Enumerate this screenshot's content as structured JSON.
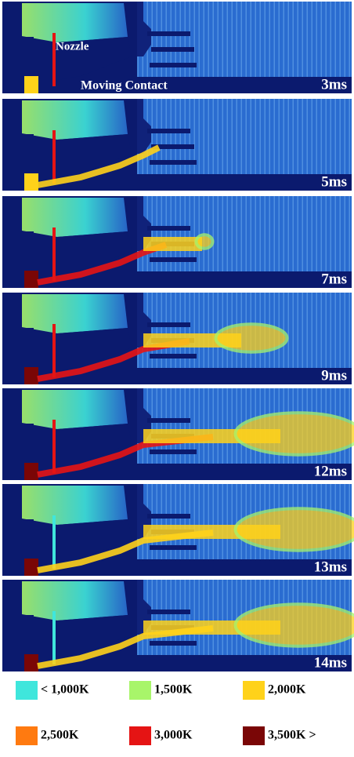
{
  "annotations": {
    "nozzle": "Nozzle",
    "moving_contact": "Moving Contact"
  },
  "panels": [
    {
      "time": "3ms"
    },
    {
      "time": "5ms"
    },
    {
      "time": "7ms"
    },
    {
      "time": "9ms"
    },
    {
      "time": "12ms"
    },
    {
      "time": "13ms"
    },
    {
      "time": "14ms"
    }
  ],
  "legend": [
    {
      "label": "< 1,000K",
      "color": "#3fe6dc"
    },
    {
      "label": "1,500K",
      "color": "#a8f56a"
    },
    {
      "label": "2,000K",
      "color": "#ffd21a"
    },
    {
      "label": "2,500K",
      "color": "#ff7a10"
    },
    {
      "label": "3,000K",
      "color": "#e51414"
    },
    {
      "label": "3,500K >",
      "color": "#7a0606"
    }
  ]
}
